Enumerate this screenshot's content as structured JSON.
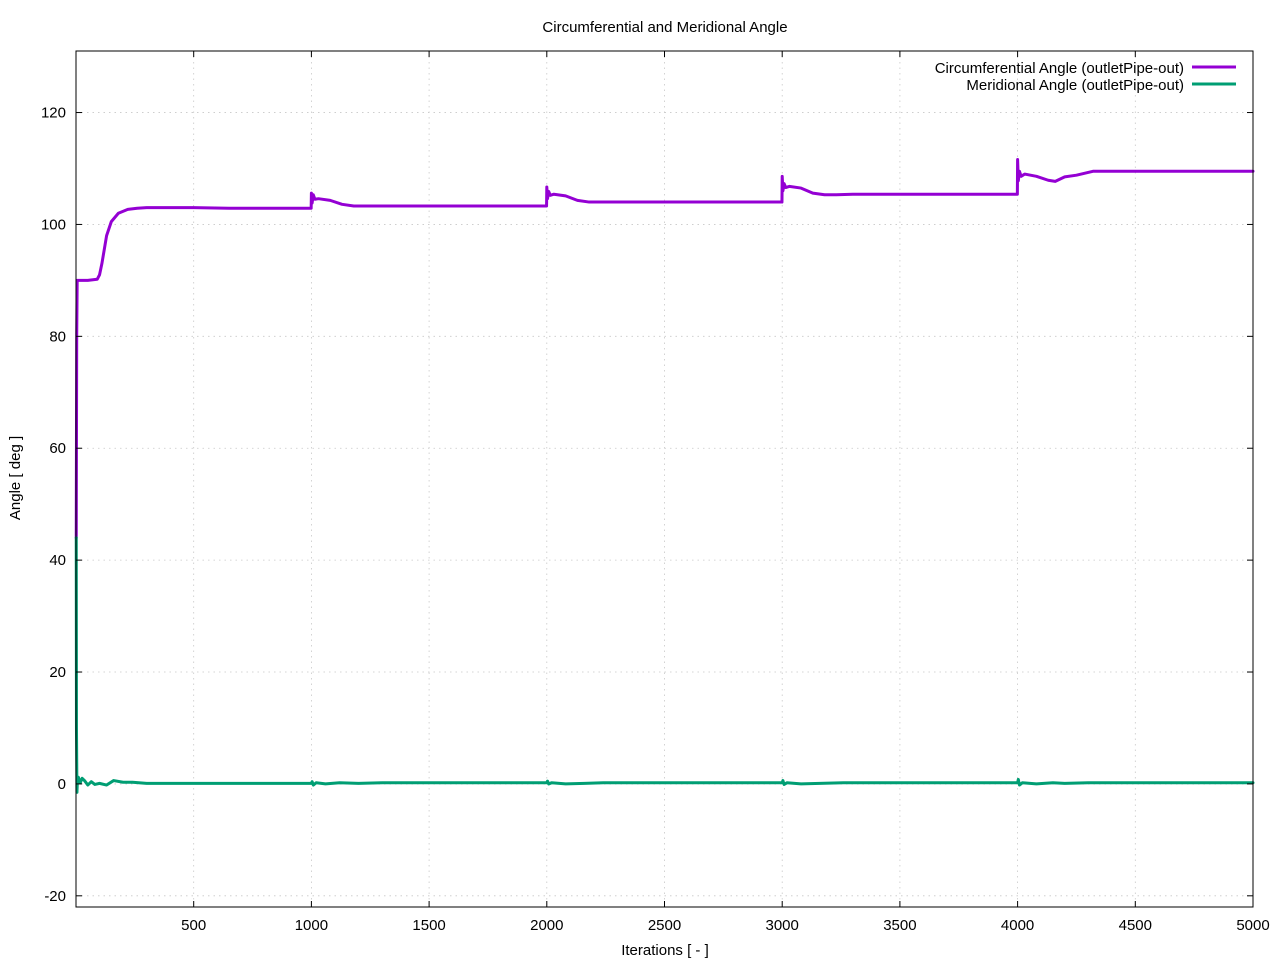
{
  "chart_data": {
    "type": "line",
    "title": "Circumferential and Meridional Angle",
    "xlabel": "Iterations [ - ]",
    "ylabel": "Angle [ deg ]",
    "xlim": [
      0,
      5000
    ],
    "ylim": [
      -22,
      131
    ],
    "xticks": [
      500,
      1000,
      1500,
      2000,
      2500,
      3000,
      3500,
      4000,
      4500,
      5000
    ],
    "yticks": [
      -20,
      0,
      20,
      40,
      60,
      80,
      100,
      120
    ],
    "xtick_labels": [
      "500",
      "1000",
      "1500",
      "2000",
      "2500",
      "3000",
      "3500",
      "4000",
      "4500",
      "5000"
    ],
    "ytick_labels": [
      "-20",
      "0",
      "20",
      "40",
      "60",
      "80",
      "100",
      "120"
    ],
    "grid": true,
    "legend_position": "top-right",
    "series": [
      {
        "name": "Circumferential Angle (outletPipe-out)",
        "color": "#9400d3",
        "x": [
          1,
          3,
          5,
          10,
          50,
          90,
          100,
          110,
          120,
          130,
          150,
          180,
          220,
          260,
          300,
          500,
          650,
          800,
          999,
          1000,
          1003,
          1008,
          1015,
          1030,
          1080,
          1130,
          1180,
          1230,
          1300,
          1500,
          1999,
          2000,
          2003,
          2008,
          2015,
          2030,
          2080,
          2130,
          2180,
          2230,
          2300,
          2500,
          2999,
          3000,
          3003,
          3008,
          3015,
          3030,
          3080,
          3130,
          3180,
          3230,
          3300,
          3500,
          3999,
          4000,
          4003,
          4008,
          4015,
          4030,
          4080,
          4130,
          4160,
          4200,
          4250,
          4320,
          4500,
          5000
        ],
        "values": [
          44,
          80,
          90,
          90,
          90,
          90.2,
          91,
          93,
          95.5,
          98,
          100.5,
          102,
          102.7,
          102.9,
          103,
          103,
          102.9,
          102.9,
          102.9,
          105.6,
          103.8,
          105.3,
          104.5,
          104.6,
          104.3,
          103.6,
          103.3,
          103.3,
          103.3,
          103.3,
          103.3,
          106.7,
          104.6,
          105.9,
          105.2,
          105.4,
          105.1,
          104.3,
          104,
          104,
          104,
          104,
          104,
          108.6,
          106,
          107.3,
          106.6,
          106.8,
          106.5,
          105.6,
          105.3,
          105.3,
          105.4,
          105.4,
          105.4,
          111.6,
          107.8,
          109.5,
          108.6,
          109,
          108.6,
          107.9,
          107.7,
          108.5,
          108.8,
          109.5,
          109.5,
          109.5
        ]
      },
      {
        "name": "Meridional Angle (outletPipe-out)",
        "color": "#009e73",
        "x": [
          1,
          2,
          4,
          6,
          10,
          18,
          26,
          36,
          50,
          65,
          80,
          100,
          130,
          160,
          200,
          240,
          300,
          500,
          700,
          1000,
          1003,
          1008,
          1020,
          1060,
          1120,
          1200,
          1300,
          2000,
          2003,
          2008,
          2020,
          2080,
          2160,
          2240,
          2320,
          3000,
          3003,
          3008,
          3020,
          3080,
          3160,
          3260,
          3360,
          4000,
          4003,
          4008,
          4020,
          4080,
          4150,
          4200,
          4300,
          5000
        ],
        "values": [
          44,
          10,
          -1.5,
          0.5,
          1.2,
          0.2,
          1,
          0.6,
          -0.2,
          0.4,
          -0.1,
          0.1,
          -0.2,
          0.6,
          0.3,
          0.3,
          0.1,
          0.1,
          0.1,
          0.1,
          0.4,
          -0.2,
          0.2,
          0,
          0.2,
          0.1,
          0.2,
          0.2,
          0.5,
          0,
          0.2,
          0,
          0.1,
          0.2,
          0.2,
          0.2,
          0.6,
          -0.1,
          0.2,
          0,
          0.1,
          0.2,
          0.2,
          0.2,
          0.8,
          -0.2,
          0.2,
          0,
          0.2,
          0.1,
          0.2,
          0.2
        ]
      }
    ]
  }
}
